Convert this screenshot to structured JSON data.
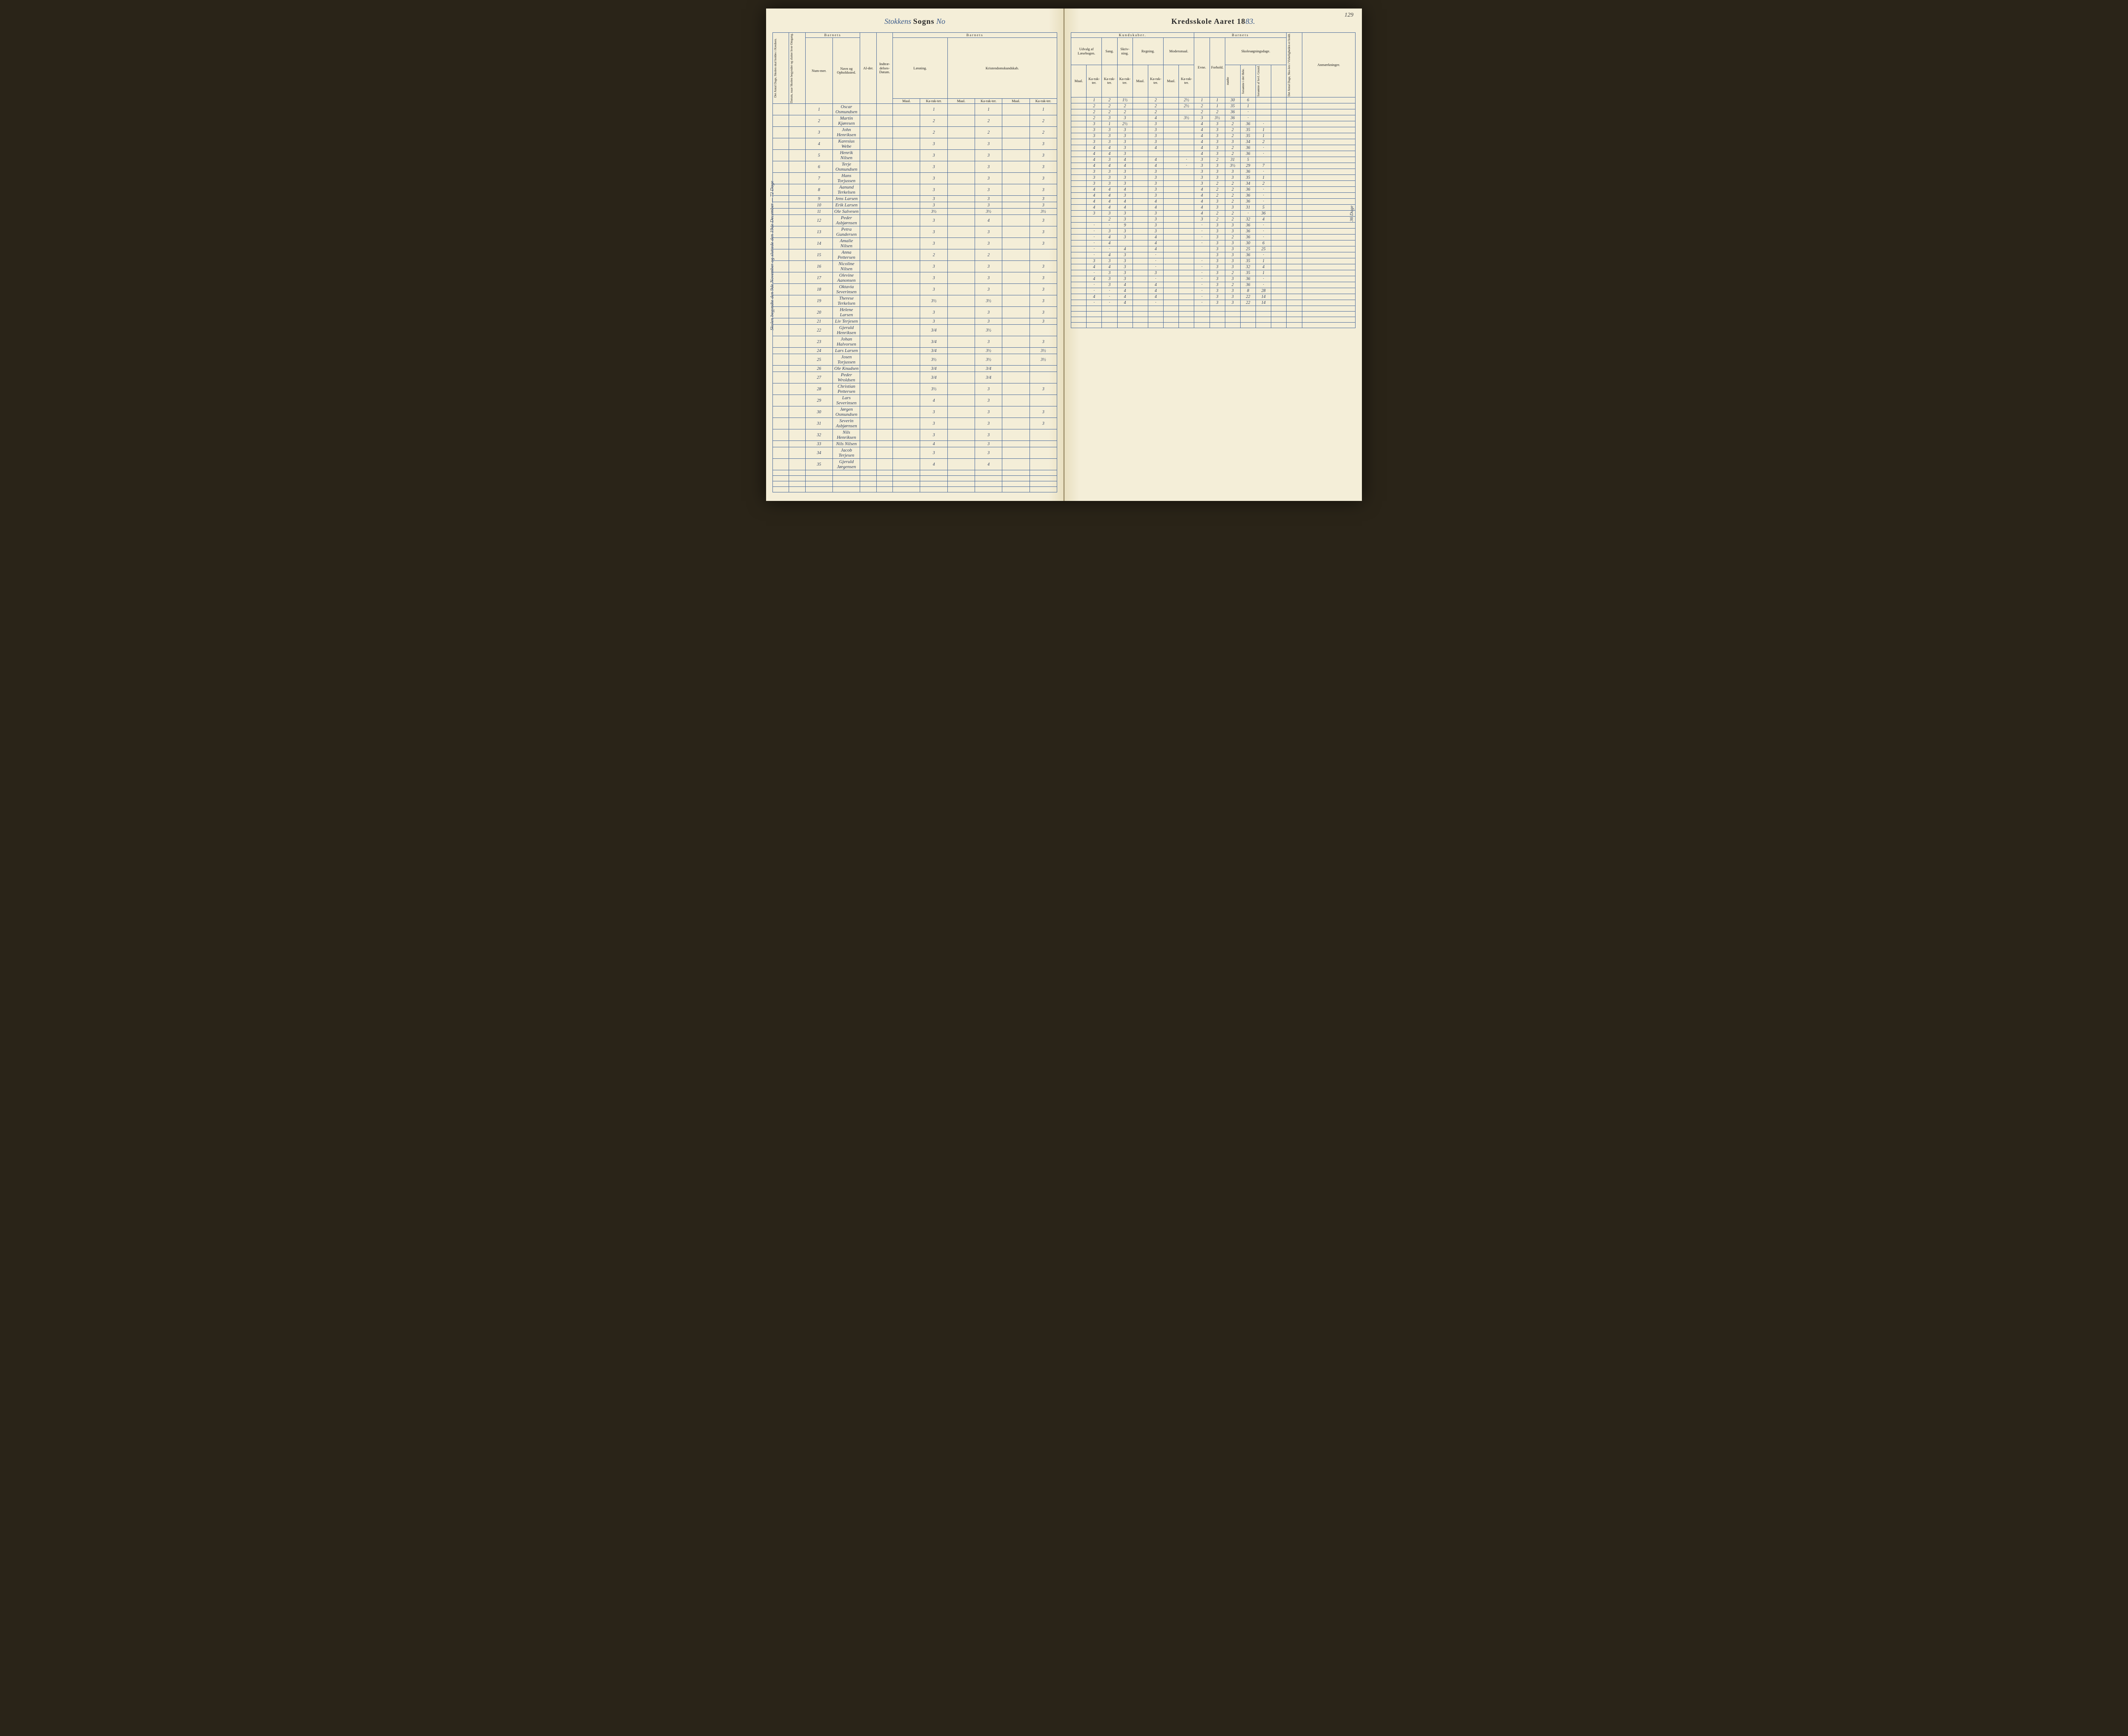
{
  "page_number": "129",
  "title_left": {
    "script": "Stokkens",
    "print": "Sogns",
    "suffix": "No"
  },
  "title_right": {
    "print": "Kredsskole Aaret 18",
    "script": "83."
  },
  "marginal_left": "Skolen begyndte den 9de November og sluttede den 19de December — 72 Dage",
  "marginal_right": "36 Dage",
  "headers": {
    "sideL1": "Det Antal Dage, Skolen skal holdes i Kredsen.",
    "sideL2": "Datum, naar Skolen begynder og slutter hver Omgang.",
    "nummer": "Num-mer.",
    "navn": "Navn og Opholdssted.",
    "alder": "Al-der.",
    "indtr": "Indtræ-delses-Datum.",
    "barnets": "Barnets",
    "laesning": "Læsning.",
    "kristen": "Kristendomskundskab.",
    "bibel": "Bibelhistorie.",
    "troes": "Troeslære.",
    "maal": "Maal.",
    "kar": "Ka-rak-ter.",
    "kundskaber": "Kundskaber.",
    "udvalg": "Udvalg af Læsebogen.",
    "sang": "Sang.",
    "skriv": "Skriv-ning.",
    "regning": "Regning.",
    "moders": "Modersmaal.",
    "skoles": "Skolesøgningsdage.",
    "evne": "Evne.",
    "forhold": "Forhold.",
    "modte": "mødte",
    "fors1": "forsømte i det Hele.",
    "fors2": "forsømte af lovl. Grund.",
    "sideR": "Det Antal Dage, Sko-len i Virkeligheden er holdt.",
    "anm": "Anmærkninger."
  },
  "rows": [
    {
      "n": "1",
      "name": "Oscar Osmundsen",
      "l_m": "",
      "l_k": "1",
      "b_m": "",
      "b_k": "1",
      "t_m": "",
      "t_k": "1",
      "u_m": "",
      "u_k": "1",
      "sa": "2",
      "sk": "1½",
      "r_m": "",
      "r_k": "2",
      "m_m": "",
      "m_k": "2½",
      "ev": "1",
      "fo": "1",
      "md": "30",
      "f1": "6",
      "f2": ""
    },
    {
      "n": "2",
      "name": "Martin Kjøresen",
      "l_m": "",
      "l_k": "2",
      "b_m": "",
      "b_k": "2",
      "t_m": "",
      "t_k": "2",
      "u_m": "",
      "u_k": "2",
      "sa": "2",
      "sk": "2",
      "r_m": "",
      "r_k": "2",
      "m_m": "",
      "m_k": "2½",
      "ev": "2",
      "fo": "1",
      "md": "35",
      "f1": "1",
      "f2": ""
    },
    {
      "n": "3",
      "name": "John Henriksen",
      "l_m": "",
      "l_k": "2",
      "b_m": "",
      "b_k": "2",
      "t_m": "",
      "t_k": "2",
      "u_m": "",
      "u_k": "2",
      "sa": "2",
      "sk": "2",
      "r_m": "",
      "r_k": "2",
      "m_m": "",
      "m_k": "",
      "ev": "2",
      "fo": "2",
      "md": "36",
      "f1": "·",
      "f2": ""
    },
    {
      "n": "4",
      "name": "Karesius Webe",
      "l_m": "",
      "l_k": "3",
      "b_m": "",
      "b_k": "3",
      "t_m": "",
      "t_k": "3",
      "u_m": "",
      "u_k": "2",
      "sa": "3",
      "sk": "3",
      "r_m": "",
      "r_k": "4",
      "m_m": "",
      "m_k": "3½",
      "ev": "3",
      "fo": "3½",
      "md": "36",
      "f1": "·",
      "f2": ""
    },
    {
      "n": "5",
      "name": "Henrik Nilsen",
      "l_m": "",
      "l_k": "3",
      "b_m": "",
      "b_k": "3",
      "t_m": "",
      "t_k": "3",
      "u_m": "",
      "u_k": "3",
      "sa": "1",
      "sk": "2½",
      "r_m": "",
      "r_k": "3",
      "m_m": "",
      "m_k": "",
      "ev": "4",
      "fo": "3",
      "md": "2",
      "f1": "36",
      "f2": "·"
    },
    {
      "n": "6",
      "name": "Terje Osmundsen",
      "l_m": "",
      "l_k": "3",
      "b_m": "",
      "b_k": "3",
      "t_m": "",
      "t_k": "3",
      "u_m": "",
      "u_k": "3",
      "sa": "3",
      "sk": "3",
      "r_m": "",
      "r_k": "3",
      "m_m": "",
      "m_k": "",
      "ev": "4",
      "fo": "3",
      "md": "2",
      "f1": "35",
      "f2": "1"
    },
    {
      "n": "7",
      "name": "Hans Torjussen",
      "l_m": "",
      "l_k": "3",
      "b_m": "",
      "b_k": "3",
      "t_m": "",
      "t_k": "3",
      "u_m": "",
      "u_k": "3",
      "sa": "3",
      "sk": "3",
      "r_m": "",
      "r_k": "3",
      "m_m": "",
      "m_k": "",
      "ev": "4",
      "fo": "3",
      "md": "2",
      "f1": "35",
      "f2": "1"
    },
    {
      "n": "8",
      "name": "Aanund Terkelsen",
      "l_m": "",
      "l_k": "3",
      "b_m": "",
      "b_k": "3",
      "t_m": "",
      "t_k": "3",
      "u_m": "",
      "u_k": "3",
      "sa": "3",
      "sk": "3",
      "r_m": "",
      "r_k": "3",
      "m_m": "",
      "m_k": "",
      "ev": "4",
      "fo": "3",
      "md": "3",
      "f1": "34",
      "f2": "2"
    },
    {
      "n": "9",
      "name": "Jens Larsen",
      "l_m": "",
      "l_k": "3",
      "b_m": "",
      "b_k": "3",
      "t_m": "",
      "t_k": "3",
      "u_m": "",
      "u_k": "4",
      "sa": "4",
      "sk": "3",
      "r_m": "",
      "r_k": "4",
      "m_m": "",
      "m_k": "",
      "ev": "4",
      "fo": "3",
      "md": "2",
      "f1": "36",
      "f2": "·"
    },
    {
      "n": "10",
      "name": "Erik Larsen",
      "l_m": "",
      "l_k": "3",
      "b_m": "",
      "b_k": "3",
      "t_m": "",
      "t_k": "3",
      "u_m": "",
      "u_k": "4",
      "sa": "4",
      "sk": "3",
      "r_m": "",
      "r_k": "",
      "m_m": "",
      "m_k": "",
      "ev": "4",
      "fo": "3",
      "md": "2",
      "f1": "36",
      "f2": "·"
    },
    {
      "n": "11",
      "name": "Ole Salvesen",
      "l_m": "",
      "l_k": "3½",
      "b_m": "",
      "b_k": "3½",
      "t_m": "",
      "t_k": "3½",
      "u_m": "",
      "u_k": "4",
      "sa": "3",
      "sk": "4",
      "r_m": "",
      "r_k": "4",
      "m_m": "",
      "m_k": "·",
      "ev": "3",
      "fo": "2",
      "md": "31",
      "f1": "5",
      "f2": ""
    },
    {
      "n": "12",
      "name": "Peder Asbjørnsen",
      "l_m": "",
      "l_k": "3",
      "b_m": "",
      "b_k": "4",
      "t_m": "",
      "t_k": "3",
      "u_m": "",
      "u_k": "4",
      "sa": "4",
      "sk": "4",
      "r_m": "",
      "r_k": "4",
      "m_m": "",
      "m_k": "·",
      "ev": "3",
      "fo": "3",
      "md": "3½",
      "f1": "29",
      "f2": "7"
    },
    {
      "n": "13",
      "name": "Petra Gundersen",
      "l_m": "",
      "l_k": "3",
      "b_m": "",
      "b_k": "3",
      "t_m": "",
      "t_k": "3",
      "u_m": "",
      "u_k": "3",
      "sa": "3",
      "sk": "3",
      "r_m": "",
      "r_k": "3",
      "m_m": "",
      "m_k": "",
      "ev": "3",
      "fo": "3",
      "md": "3",
      "f1": "36",
      "f2": "·"
    },
    {
      "n": "14",
      "name": "Amalie Nilsen",
      "l_m": "",
      "l_k": "3",
      "b_m": "",
      "b_k": "3",
      "t_m": "",
      "t_k": "3",
      "u_m": "",
      "u_k": "3",
      "sa": "3",
      "sk": "3",
      "r_m": "",
      "r_k": "3",
      "m_m": "",
      "m_k": "",
      "ev": "3",
      "fo": "3",
      "md": "3",
      "f1": "35",
      "f2": "1"
    },
    {
      "n": "15",
      "name": "Anna Pettersen",
      "l_m": "",
      "l_k": "2",
      "b_m": "",
      "b_k": "2",
      "t_m": "",
      "t_k": "",
      "u_m": "",
      "u_k": "3",
      "sa": "3",
      "sk": "3",
      "r_m": "",
      "r_k": "3",
      "m_m": "",
      "m_k": "",
      "ev": "3",
      "fo": "2",
      "md": "2",
      "f1": "34",
      "f2": "2"
    },
    {
      "n": "16",
      "name": "Nicoline Nilsen",
      "l_m": "",
      "l_k": "3",
      "b_m": "",
      "b_k": "3",
      "t_m": "",
      "t_k": "3",
      "u_m": "",
      "u_k": "4",
      "sa": "4",
      "sk": "4",
      "r_m": "",
      "r_k": "3",
      "m_m": "",
      "m_k": "",
      "ev": "4",
      "fo": "2",
      "md": "2",
      "f1": "36",
      "f2": "·"
    },
    {
      "n": "17",
      "name": "Olevine Aanonsen",
      "l_m": "",
      "l_k": "3",
      "b_m": "",
      "b_k": "3",
      "t_m": "",
      "t_k": "3",
      "u_m": "",
      "u_k": "4",
      "sa": "4",
      "sk": "3",
      "r_m": "",
      "r_k": "3",
      "m_m": "",
      "m_k": "",
      "ev": "4",
      "fo": "2",
      "md": "2",
      "f1": "36",
      "f2": "·"
    },
    {
      "n": "18",
      "name": "Oktavia Severinsen",
      "l_m": "",
      "l_k": "3",
      "b_m": "",
      "b_k": "3",
      "t_m": "",
      "t_k": "3",
      "u_m": "",
      "u_k": "4",
      "sa": "4",
      "sk": "4",
      "r_m": "",
      "r_k": "4",
      "m_m": "",
      "m_k": "",
      "ev": "4",
      "fo": "3",
      "md": "2",
      "f1": "36",
      "f2": "·"
    },
    {
      "n": "19",
      "name": "Therese Terkelsen",
      "l_m": "",
      "l_k": "3½",
      "b_m": "",
      "b_k": "3½",
      "t_m": "",
      "t_k": "3",
      "u_m": "",
      "u_k": "4",
      "sa": "4",
      "sk": "4",
      "r_m": "",
      "r_k": "4",
      "m_m": "",
      "m_k": "",
      "ev": "4",
      "fo": "3",
      "md": "3",
      "f1": "31",
      "f2": "5"
    },
    {
      "n": "20",
      "name": "Helene Larsen",
      "l_m": "",
      "l_k": "3",
      "b_m": "",
      "b_k": "3",
      "t_m": "",
      "t_k": "3",
      "u_m": "",
      "u_k": "3",
      "sa": "3",
      "sk": "3",
      "r_m": "",
      "r_k": "3",
      "m_m": "",
      "m_k": "",
      "ev": "4",
      "fo": "2",
      "md": "2",
      "f1": "·",
      "f2": "36"
    },
    {
      "n": "21",
      "name": "Liv Terjesen",
      "l_m": "",
      "l_k": "3",
      "b_m": "",
      "b_k": "3",
      "t_m": "",
      "t_k": "3",
      "u_m": "",
      "u_k": "",
      "sa": "2",
      "sk": "3",
      "r_m": "",
      "r_k": "3",
      "m_m": "",
      "m_k": "",
      "ev": "3",
      "fo": "2",
      "md": "2",
      "f1": "32",
      "f2": "4"
    },
    {
      "n": "22",
      "name": "Gjeruld Henriksen",
      "l_m": "",
      "l_k": "3/4",
      "b_m": "",
      "b_k": "3½",
      "t_m": "",
      "t_k": "",
      "u_m": "",
      "u_k": "·",
      "sa": "·",
      "sk": "9",
      "r_m": "",
      "r_k": "3",
      "m_m": "",
      "m_k": "",
      "ev": "·",
      "fo": "3",
      "md": "3",
      "f1": "36",
      "f2": "·"
    },
    {
      "n": "23",
      "name": "Johan Halvorsen",
      "l_m": "",
      "l_k": "3/4",
      "b_m": "",
      "b_k": "3",
      "t_m": "",
      "t_k": "3",
      "u_m": "",
      "u_k": "·",
      "sa": "3",
      "sk": "3",
      "r_m": "",
      "r_k": "3",
      "m_m": "",
      "m_k": "",
      "ev": "·",
      "fo": "3",
      "md": "3",
      "f1": "36",
      "f2": "·"
    },
    {
      "n": "24",
      "name": "Lars Larsen",
      "l_m": "",
      "l_k": "3/4",
      "b_m": "",
      "b_k": "3½",
      "t_m": "",
      "t_k": "3½",
      "u_m": "",
      "u_k": "·",
      "sa": "4",
      "sk": "3",
      "r_m": "",
      "r_k": "4",
      "m_m": "",
      "m_k": "",
      "ev": "·",
      "fo": "3",
      "md": "2",
      "f1": "36",
      "f2": "·"
    },
    {
      "n": "25",
      "name": "Josen Torjussen",
      "l_m": "",
      "l_k": "3½",
      "b_m": "",
      "b_k": "3½",
      "t_m": "",
      "t_k": "3½",
      "u_m": "",
      "u_k": "·",
      "sa": "4",
      "sk": "",
      "r_m": "",
      "r_k": "4",
      "m_m": "",
      "m_k": "",
      "ev": "·",
      "fo": "3",
      "md": "3",
      "f1": "30",
      "f2": "6"
    },
    {
      "n": "26",
      "name": "Ole Knudsen",
      "l_m": "",
      "l_k": "3/4",
      "b_m": "",
      "b_k": "3/4",
      "t_m": "",
      "t_k": "",
      "u_m": "",
      "u_k": "·",
      "sa": "·",
      "sk": "4",
      "r_m": "",
      "r_k": "4",
      "m_m": "",
      "m_k": "",
      "ev": "",
      "fo": "3",
      "md": "3",
      "f1": "25",
      "f2": "25"
    },
    {
      "n": "27",
      "name": "Peder Wroldsen",
      "l_m": "",
      "l_k": "3/4",
      "b_m": "",
      "b_k": "3/4",
      "t_m": "",
      "t_k": "",
      "u_m": "",
      "u_k": "·",
      "sa": "4",
      "sk": "3",
      "r_m": "",
      "r_k": "·",
      "m_m": "",
      "m_k": "",
      "ev": "",
      "fo": "3",
      "md": "3",
      "f1": "36",
      "f2": "·"
    },
    {
      "n": "28",
      "name": "Christian Pettersen",
      "l_m": "",
      "l_k": "3½",
      "b_m": "",
      "b_k": "3",
      "t_m": "",
      "t_k": "3",
      "u_m": "",
      "u_k": "3",
      "sa": "3",
      "sk": "3",
      "r_m": "",
      "r_k": "·",
      "m_m": "",
      "m_k": "",
      "ev": "·",
      "fo": "3",
      "md": "3",
      "f1": "35",
      "f2": "1"
    },
    {
      "n": "29",
      "name": "Lars Severinsen",
      "l_m": "",
      "l_k": "4",
      "b_m": "",
      "b_k": "3",
      "t_m": "",
      "t_k": "",
      "u_m": "",
      "u_k": "4",
      "sa": "4",
      "sk": "3",
      "r_m": "",
      "r_k": "·",
      "m_m": "",
      "m_k": "",
      "ev": "·",
      "fo": "3",
      "md": "3",
      "f1": "32",
      "f2": "4"
    },
    {
      "n": "30",
      "name": "Jørgen Osmundsen",
      "l_m": "",
      "l_k": "3",
      "b_m": "",
      "b_k": "3",
      "t_m": "",
      "t_k": "3",
      "u_m": "",
      "u_k": "·",
      "sa": "3",
      "sk": "3",
      "r_m": "",
      "r_k": "3",
      "m_m": "",
      "m_k": "",
      "ev": "·",
      "fo": "3",
      "md": "2",
      "f1": "35",
      "f2": "1"
    },
    {
      "n": "31",
      "name": "Severin Asbjørnsen",
      "l_m": "",
      "l_k": "3",
      "b_m": "",
      "b_k": "3",
      "t_m": "",
      "t_k": "3",
      "u_m": "",
      "u_k": "4",
      "sa": "3",
      "sk": "3",
      "r_m": "",
      "r_k": "·",
      "m_m": "",
      "m_k": "",
      "ev": "·",
      "fo": "3",
      "md": "3",
      "f1": "36",
      "f2": "·"
    },
    {
      "n": "32",
      "name": "Nils Henriksen",
      "l_m": "",
      "l_k": "3",
      "b_m": "",
      "b_k": "3",
      "t_m": "",
      "t_k": "",
      "u_m": "",
      "u_k": "·",
      "sa": "3",
      "sk": "4",
      "r_m": "",
      "r_k": "4",
      "m_m": "",
      "m_k": "",
      "ev": "·",
      "fo": "3",
      "md": "2",
      "f1": "36",
      "f2": "·"
    },
    {
      "n": "33",
      "name": "Nils Nilsen",
      "l_m": "",
      "l_k": "4",
      "b_m": "",
      "b_k": "3",
      "t_m": "",
      "t_k": "",
      "u_m": "",
      "u_k": "·",
      "sa": "·",
      "sk": "4",
      "r_m": "",
      "r_k": "4",
      "m_m": "",
      "m_k": "",
      "ev": "·",
      "fo": "3",
      "md": "3",
      "f1": "8",
      "f2": "28"
    },
    {
      "n": "34",
      "name": "Jacob Terjesen",
      "l_m": "",
      "l_k": "3",
      "b_m": "",
      "b_k": "3",
      "t_m": "",
      "t_k": "",
      "u_m": "",
      "u_k": "4",
      "sa": "·",
      "sk": "4",
      "r_m": "",
      "r_k": "4",
      "m_m": "",
      "m_k": "",
      "ev": "·",
      "fo": "3",
      "md": "3",
      "f1": "22",
      "f2": "14"
    },
    {
      "n": "35",
      "name": "Gjeruld Jørgensen",
      "l_m": "",
      "l_k": "4",
      "b_m": "",
      "b_k": "4",
      "t_m": "",
      "t_k": "",
      "u_m": "",
      "u_k": "·",
      "sa": "·",
      "sk": "4",
      "r_m": "",
      "r_k": "·",
      "m_m": "",
      "m_k": "",
      "ev": "·",
      "fo": "3",
      "md": "3",
      "f1": "22",
      "f2": "14"
    }
  ],
  "blank_rows": 4,
  "colors": {
    "rule": "#4a6a9a",
    "ink": "#2a3a5a",
    "paper": "#f4eed8"
  }
}
